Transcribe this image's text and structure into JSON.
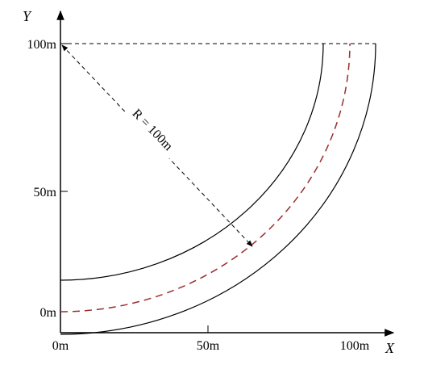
{
  "axes": {
    "x_label": "X",
    "y_label": "Y"
  },
  "y_ticks": [
    "100m",
    "50m",
    "0m"
  ],
  "x_ticks": [
    "0m",
    "50m",
    "100m"
  ],
  "radius_label": "R = 100m"
}
